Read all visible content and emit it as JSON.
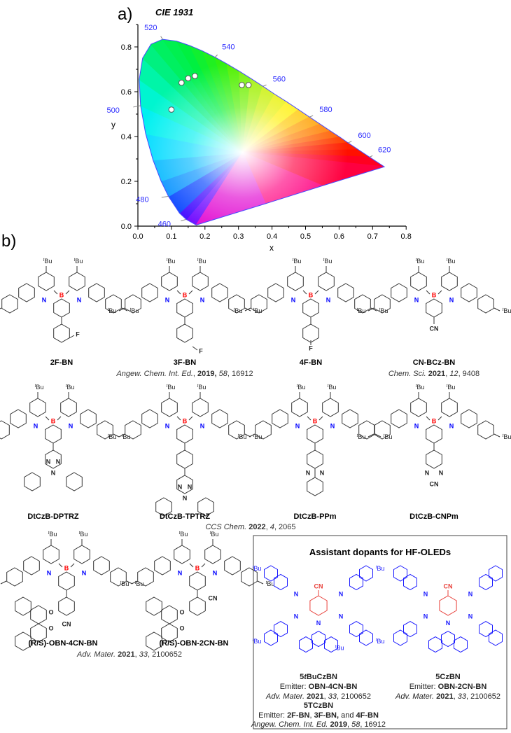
{
  "panel_labels": {
    "a": "a)",
    "b": "b)"
  },
  "chart_data": {
    "type": "scatter",
    "title": "CIE 1931",
    "xlabel": "x",
    "ylabel": "y",
    "xlim": [
      0.0,
      0.8
    ],
    "ylim": [
      0.0,
      0.9
    ],
    "x_ticks": [
      "0.0",
      "0.1",
      "0.2",
      "0.3",
      "0.4",
      "0.5",
      "0.6",
      "0.7",
      "0.8"
    ],
    "y_ticks": [
      "0.0",
      "0.2",
      "0.4",
      "0.6",
      "0.8"
    ],
    "grid": false,
    "background": "CIE 1931 chromaticity diagram (spectral locus)",
    "wavelength_labels": [
      {
        "nm": "460",
        "x": 0.144,
        "y": 0.03
      },
      {
        "nm": "480",
        "x": 0.091,
        "y": 0.133
      },
      {
        "nm": "500",
        "x": 0.008,
        "y": 0.538
      },
      {
        "nm": "520",
        "x": 0.074,
        "y": 0.834
      },
      {
        "nm": "540",
        "x": 0.23,
        "y": 0.754
      },
      {
        "nm": "560",
        "x": 0.373,
        "y": 0.624
      },
      {
        "nm": "580",
        "x": 0.512,
        "y": 0.487
      },
      {
        "nm": "600",
        "x": 0.627,
        "y": 0.372
      },
      {
        "nm": "620",
        "x": 0.691,
        "y": 0.308
      }
    ],
    "points": [
      {
        "x": 0.1,
        "y": 0.52
      },
      {
        "x": 0.13,
        "y": 0.64
      },
      {
        "x": 0.15,
        "y": 0.66
      },
      {
        "x": 0.17,
        "y": 0.67
      },
      {
        "x": 0.31,
        "y": 0.63
      },
      {
        "x": 0.33,
        "y": 0.63
      }
    ],
    "colors": {
      "locus_label": "#2a2aff",
      "point_fill": "#ffffff",
      "point_stroke": "#555555"
    }
  },
  "atoms": {
    "t": "t",
    "Bu": "Bu",
    "B": "B",
    "N": "N",
    "F": "F",
    "CN": "CN",
    "O": "O"
  },
  "colors": {
    "boron": "#ff0000",
    "nitrogen": "#0000ff",
    "bond": "#333333",
    "dopant_core": "#e8403a",
    "dopant_arms": "#1a1aff"
  },
  "compounds": [
    {
      "name": "2F-BN"
    },
    {
      "name": "3F-BN"
    },
    {
      "name": "4F-BN"
    },
    {
      "name": "CN-BCz-BN"
    },
    {
      "name": "DtCzB-DPTRZ"
    },
    {
      "name": "DtCzB-TPTRZ"
    },
    {
      "name": "DtCzB-PPm"
    },
    {
      "name": "DtCzB-CNPm"
    },
    {
      "name": "(R/S)-OBN-4CN-BN"
    },
    {
      "name": "(R/S)-OBN-2CN-BN"
    }
  ],
  "refs": {
    "angew": {
      "journal": "Angew. Chem. Int. Ed.",
      "sep1": ", ",
      "year": "2019,",
      "vol": "58",
      "page": ", 16912"
    },
    "chemsci": {
      "journal": "Chem. Sci.",
      "year": "2021",
      "vol": "12",
      "page": ", 9408"
    },
    "ccs": {
      "journal": "CCS Chem.",
      "year": "2022",
      "vol": "4",
      "page": ", 2065"
    },
    "adv": {
      "journal": "Adv. Mater.",
      "year": "2021",
      "vol": "33",
      "page": ", 2100652"
    }
  },
  "dopant_box": {
    "title": "Assistant dopants for HF-OLEDs",
    "left": {
      "name_prefix": "5",
      "name_italic": "t",
      "name_suffix": "BuCzBN",
      "emitter_label": "Emitter: ",
      "emitter": "OBN-4CN-BN",
      "ref": {
        "journal": "Adv. Mater.",
        "year": "2021",
        "vol": "33",
        "page": ", 2100652"
      },
      "name2": "5TCzBN",
      "emitter2_label": "Emitter: ",
      "emitter2_a": "2F-BN",
      "emitter2_sep1": ", ",
      "emitter2_b": "3F-BN,",
      "emitter2_sep2": " and ",
      "emitter2_c": "4F-BN",
      "ref2": {
        "journal": "Angew. Chem. Int. Ed.",
        "year": "2019",
        "vol": "58",
        "page": ", 16912"
      }
    },
    "right": {
      "name": "5CzBN",
      "emitter_label": "Emitter: ",
      "emitter": "OBN-2CN-BN",
      "ref": {
        "journal": "Adv. Mater.",
        "year": "2021",
        "vol": "33",
        "page": ", 2100652"
      }
    }
  }
}
